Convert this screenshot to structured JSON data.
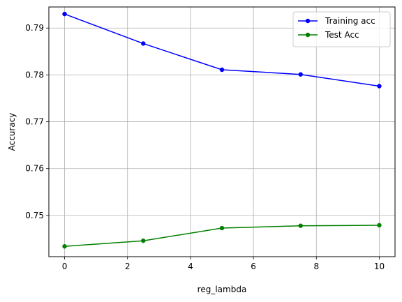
{
  "chart_data": {
    "type": "line",
    "title": "",
    "xlabel": "reg_lambda",
    "ylabel": "Accuracy",
    "xlim": [
      -0.5,
      10.5
    ],
    "ylim": [
      0.7412,
      0.7945
    ],
    "xticks": [
      0,
      2,
      4,
      6,
      8,
      10
    ],
    "yticks": [
      0.75,
      0.76,
      0.77,
      0.78,
      0.79
    ],
    "grid": true,
    "legend_position": "top-right",
    "x": [
      0,
      2.5,
      5,
      7.5,
      10
    ],
    "series": [
      {
        "name": "Training acc",
        "color": "#0000ff",
        "values": [
          0.793,
          0.7867,
          0.7811,
          0.7801,
          0.7776
        ]
      },
      {
        "name": "Test Acc",
        "color": "#008000",
        "values": [
          0.7434,
          0.7446,
          0.7473,
          0.7478,
          0.7479
        ]
      }
    ]
  }
}
